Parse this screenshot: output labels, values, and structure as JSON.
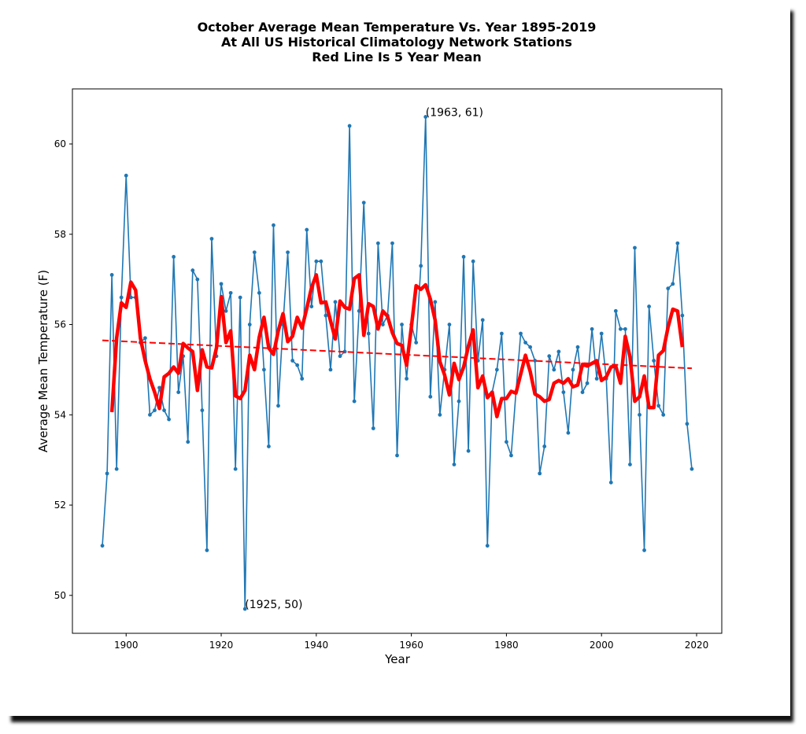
{
  "chart_data": {
    "type": "line",
    "title": [
      "October Average Mean Temperature Vs. Year 1895-2019",
      "At All US Historical Climatology Network Stations",
      "Red Line Is 5 Year Mean"
    ],
    "xlabel": "Year",
    "ylabel": "Average Mean Temperature (F)",
    "xlim": [
      1888.7,
      2025.3
    ],
    "ylim": [
      49.16,
      61.22
    ],
    "xticks": [
      1900,
      1920,
      1940,
      1960,
      1980,
      2000,
      2020
    ],
    "yticks": [
      50,
      52,
      54,
      56,
      58,
      60
    ],
    "grid": false,
    "x_start": 1895,
    "series": [
      {
        "name": "October mean temperature",
        "color": "#1f77b4",
        "style": "line-markers",
        "values": [
          51.1,
          52.7,
          57.1,
          52.8,
          56.6,
          59.3,
          56.6,
          56.6,
          55.6,
          55.7,
          54.0,
          54.1,
          54.6,
          54.1,
          53.9,
          57.5,
          54.5,
          55.3,
          53.4,
          57.2,
          57.0,
          54.1,
          51.0,
          57.9,
          55.3,
          56.9,
          56.3,
          56.7,
          52.8,
          56.6,
          49.7,
          56.0,
          57.6,
          56.7,
          55.0,
          53.3,
          58.2,
          54.2,
          56.0,
          57.6,
          55.2,
          55.1,
          54.8,
          58.1,
          56.4,
          57.4,
          57.4,
          56.2,
          55.0,
          56.5,
          55.3,
          55.4,
          60.4,
          54.3,
          56.3,
          58.7,
          55.8,
          53.7,
          57.8,
          56.0,
          56.2,
          57.8,
          53.1,
          56.0,
          54.8,
          56.0,
          55.6,
          57.3,
          60.6,
          54.4,
          56.5,
          54.0,
          55.0,
          56.0,
          52.9,
          54.3,
          57.5,
          53.2,
          57.4,
          55.2,
          56.1,
          51.1,
          54.5,
          55.0,
          55.8,
          53.4,
          53.1,
          54.5,
          55.8,
          55.6,
          55.5,
          55.2,
          52.7,
          53.3,
          55.3,
          55.0,
          55.4,
          54.5,
          53.6,
          55.0,
          55.5,
          54.5,
          54.7,
          55.9,
          54.8,
          55.8,
          54.8,
          52.5,
          56.3,
          55.9,
          55.9,
          52.9,
          57.7,
          54.0,
          51.0,
          56.4,
          55.2,
          54.2,
          54.0,
          56.8,
          56.9,
          57.8,
          56.2,
          53.8,
          52.8
        ]
      },
      {
        "name": "5 Year Mean",
        "color": "#ff0000",
        "style": "thick-line",
        "window": 5,
        "centered": true
      },
      {
        "name": "Linear trend",
        "color": "#ff0000",
        "style": "dashed",
        "x": [
          1895,
          2019
        ],
        "values": [
          55.65,
          55.03
        ]
      }
    ],
    "annotations": [
      {
        "text": "(1963, 61)",
        "x": 1963,
        "y": 60.6
      },
      {
        "text": "(1925, 50)",
        "x": 1925,
        "y": 49.7
      }
    ]
  }
}
